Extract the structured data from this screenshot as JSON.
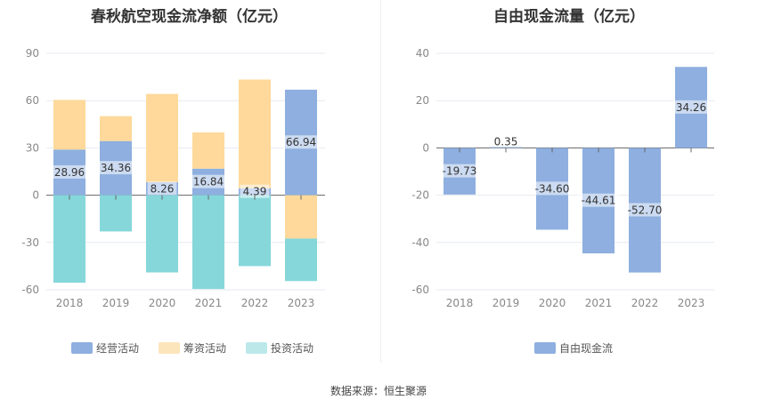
{
  "footer": {
    "source": "数据来源：恒生聚源"
  },
  "chart_data": [
    {
      "type": "bar",
      "stacked": true,
      "title": "春秋航空现金流净额（亿元）",
      "categories": [
        "2018",
        "2019",
        "2020",
        "2021",
        "2022",
        "2023"
      ],
      "ylim": [
        -60,
        90
      ],
      "yticks": [
        90,
        60,
        30,
        0,
        -30,
        -60
      ],
      "grid": true,
      "legend_position": "bottom",
      "series": [
        {
          "name": "经营活动",
          "color": "#8eafdf",
          "values": [
            28.96,
            34.36,
            8.26,
            16.84,
            4.39,
            66.94
          ],
          "labels": [
            "28.96",
            "34.36",
            "8.26",
            "16.84",
            "4.39",
            "66.94"
          ]
        },
        {
          "name": "筹资活动",
          "color": "#fed99b",
          "values": [
            31.5,
            15.8,
            56.0,
            23.0,
            69.0,
            -27.5
          ]
        },
        {
          "name": "投资活动",
          "color": "#86d7da",
          "values": [
            -55.5,
            -23.0,
            -49.0,
            -59.5,
            -45.0,
            -27.0
          ]
        }
      ]
    },
    {
      "type": "bar",
      "title": "自由现金流量（亿元）",
      "categories": [
        "2018",
        "2019",
        "2020",
        "2021",
        "2022",
        "2023"
      ],
      "ylim": [
        -60,
        40
      ],
      "yticks": [
        40,
        20,
        0,
        -20,
        -40,
        -60
      ],
      "grid": true,
      "legend_position": "bottom",
      "series": [
        {
          "name": "自由现金流",
          "color": "#8eafdf",
          "values": [
            -19.73,
            0.35,
            -34.6,
            -44.61,
            -52.7,
            34.26
          ],
          "labels": [
            "-19.73",
            "0.35",
            "-34.60",
            "-44.61",
            "-52.70",
            "34.26"
          ]
        }
      ]
    }
  ]
}
